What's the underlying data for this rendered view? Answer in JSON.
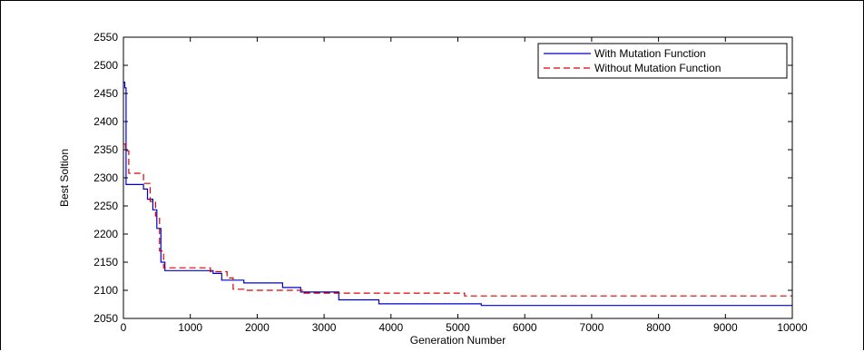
{
  "chart_data": {
    "type": "line",
    "title": "",
    "xlabel": "Generation Number",
    "ylabel": "Best Soltion",
    "xlim": [
      0,
      10000
    ],
    "ylim": [
      2050,
      2550
    ],
    "xticks": [
      0,
      1000,
      2000,
      3000,
      4000,
      5000,
      6000,
      7000,
      8000,
      9000,
      10000
    ],
    "yticks": [
      2050,
      2100,
      2150,
      2200,
      2250,
      2300,
      2350,
      2400,
      2450,
      2500,
      2550
    ],
    "grid": false,
    "legend_position": "top-right",
    "series": [
      {
        "name": "With Mutation Function",
        "color": "#0000cc",
        "style": "solid",
        "step": true,
        "x": [
          0,
          20,
          40,
          300,
          360,
          440,
          500,
          560,
          620,
          780,
          1340,
          1470,
          1600,
          1800,
          2380,
          2650,
          3220,
          3820,
          5350,
          10000
        ],
        "y": [
          2470,
          2460,
          2288,
          2280,
          2262,
          2243,
          2210,
          2150,
          2135,
          2135,
          2130,
          2118,
          2118,
          2113,
          2105,
          2097,
          2083,
          2076,
          2073,
          2073
        ]
      },
      {
        "name": "Without Mutation Function",
        "color": "#dd0000",
        "style": "dashed",
        "step": true,
        "x": [
          0,
          30,
          80,
          300,
          400,
          480,
          540,
          600,
          1300,
          1550,
          1640,
          1800,
          2700,
          5100,
          10000
        ],
        "y": [
          2360,
          2348,
          2308,
          2290,
          2258,
          2232,
          2170,
          2140,
          2133,
          2122,
          2102,
          2100,
          2095,
          2090,
          2090
        ]
      }
    ]
  }
}
